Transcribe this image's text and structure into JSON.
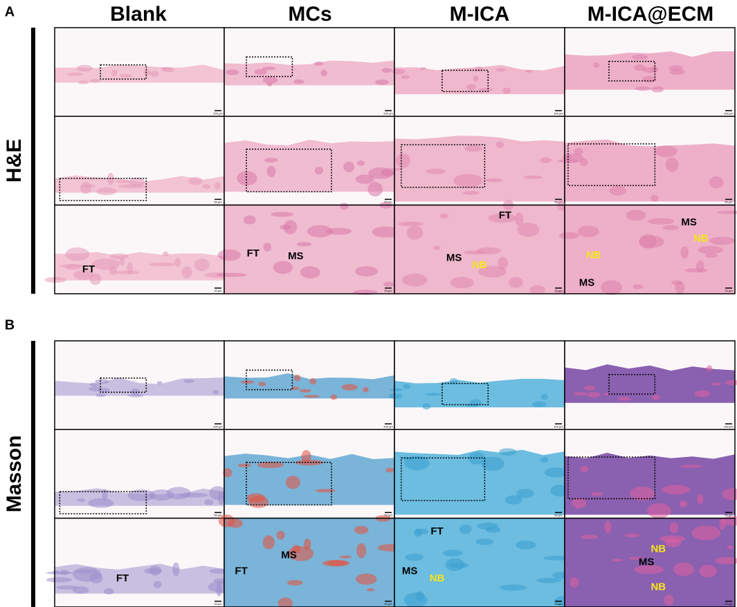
{
  "columns": [
    "Blank",
    "MCs",
    "M-ICA",
    "M-ICA@ECM"
  ],
  "panels": [
    {
      "label": "A",
      "stain": "H&E",
      "scale_bars": [
        "200 µm",
        "50 µm",
        "20 µm"
      ],
      "annotations": [
        [
          [],
          [],
          [],
          []
        ],
        [
          [],
          [],
          [],
          []
        ],
        [
          [
            "FT"
          ],
          [
            "FT",
            "MS"
          ],
          [
            "FT",
            "MS",
            "NB"
          ],
          [
            "MS",
            "NB",
            "NB",
            "MS"
          ]
        ]
      ]
    },
    {
      "label": "B",
      "stain": "Masson",
      "scale_bars": [
        "200 µm",
        "50 µm",
        "20 µm"
      ],
      "annotations": [
        [
          [],
          [],
          [],
          []
        ],
        [
          [],
          [],
          [],
          []
        ],
        [
          [
            "FT"
          ],
          [
            "FT",
            "MS"
          ],
          [
            "FT",
            "MS",
            "NB"
          ],
          [
            "NB",
            "MS",
            "NB"
          ]
        ]
      ]
    }
  ]
}
